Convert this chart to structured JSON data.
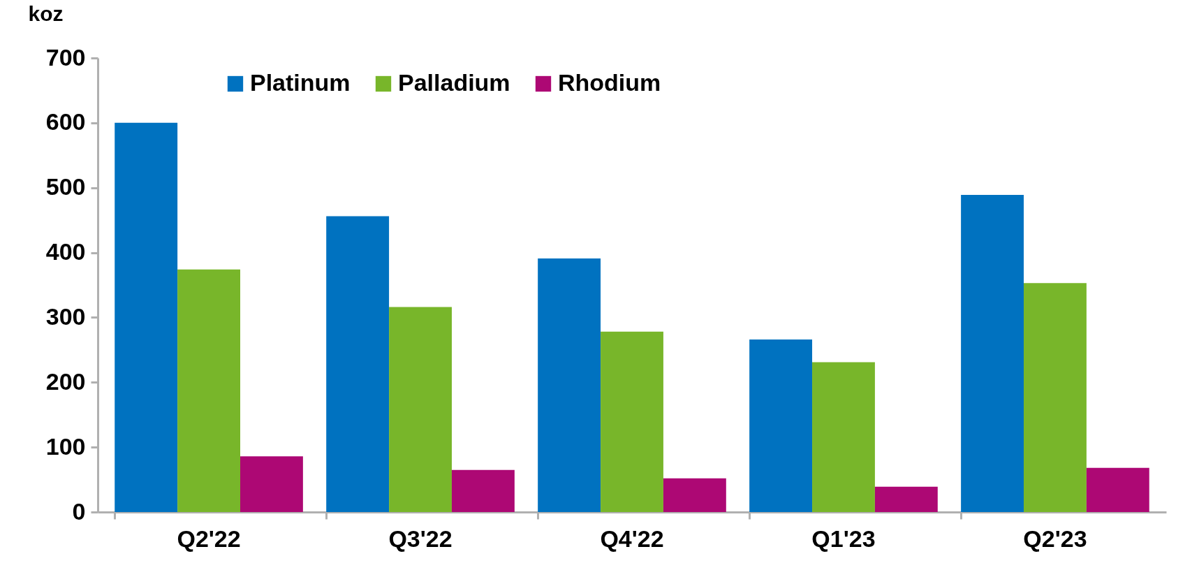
{
  "chart_data": {
    "type": "bar",
    "ylabel": "koz",
    "categories": [
      "Q2'22",
      "Q3'22",
      "Q4'22",
      "Q1'23",
      "Q2'23"
    ],
    "series": [
      {
        "name": "Platinum",
        "color": "#0072c0",
        "values": [
          600,
          456,
          391,
          266,
          489
        ]
      },
      {
        "name": "Palladium",
        "color": "#78b62a",
        "values": [
          374,
          316,
          278,
          231,
          353
        ]
      },
      {
        "name": "Rhodium",
        "color": "#ad0874",
        "values": [
          86,
          65,
          52,
          39,
          68
        ]
      }
    ],
    "ylim": [
      0,
      700
    ],
    "yticks": [
      0,
      100,
      200,
      300,
      400,
      500,
      600,
      700
    ],
    "grid": false,
    "legend": "top"
  }
}
